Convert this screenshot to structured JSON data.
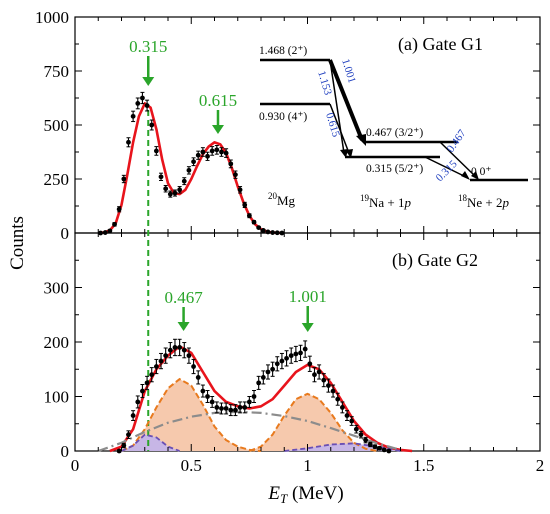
{
  "chart_data": [
    {
      "type": "scatter",
      "panel_label": "(a) Gate G1",
      "xlabel": "E_T (MeV)",
      "ylabel": "Counts",
      "xlim": [
        0,
        2
      ],
      "ylim": [
        0,
        1000
      ],
      "yticks": [
        "0",
        "250",
        "500",
        "750",
        "1000"
      ],
      "peak_labels": [
        {
          "text": "0.315",
          "x": 0.315
        },
        {
          "text": "0.615",
          "x": 0.615
        }
      ],
      "series": [
        {
          "kind": "data_points",
          "x": [
            0.11,
            0.13,
            0.15,
            0.17,
            0.19,
            0.21,
            0.23,
            0.25,
            0.27,
            0.29,
            0.31,
            0.33,
            0.35,
            0.37,
            0.39,
            0.41,
            0.43,
            0.45,
            0.47,
            0.49,
            0.51,
            0.53,
            0.55,
            0.57,
            0.59,
            0.61,
            0.63,
            0.65,
            0.67,
            0.69,
            0.71,
            0.73,
            0.75,
            0.77,
            0.79,
            0.81,
            0.83,
            0.85,
            0.87,
            0.89
          ],
          "y": [
            0,
            2,
            10,
            40,
            110,
            250,
            420,
            540,
            600,
            625,
            590,
            500,
            380,
            260,
            205,
            180,
            185,
            200,
            240,
            290,
            330,
            360,
            375,
            355,
            380,
            385,
            375,
            370,
            320,
            270,
            200,
            130,
            80,
            50,
            25,
            12,
            5,
            2,
            1,
            0
          ],
          "yerr": [
            1,
            2,
            4,
            8,
            12,
            17,
            21,
            24,
            25,
            26,
            25,
            23,
            20,
            17,
            15,
            14,
            14,
            15,
            16,
            17,
            18,
            19,
            20,
            19,
            20,
            20,
            20,
            20,
            18,
            17,
            15,
            12,
            9,
            7,
            5,
            4,
            3,
            2,
            1,
            1
          ]
        },
        {
          "kind": "fit",
          "x": [
            0.1,
            0.125,
            0.15,
            0.175,
            0.2,
            0.225,
            0.25,
            0.275,
            0.3,
            0.325,
            0.35,
            0.375,
            0.4,
            0.425,
            0.45,
            0.475,
            0.5,
            0.525,
            0.55,
            0.575,
            0.6,
            0.625,
            0.65,
            0.675,
            0.7,
            0.725,
            0.75,
            0.775,
            0.8,
            0.825,
            0.85,
            0.875,
            0.9
          ],
          "y": [
            0,
            3,
            12,
            45,
            130,
            270,
            420,
            540,
            600,
            580,
            480,
            340,
            230,
            185,
            180,
            200,
            250,
            310,
            365,
            400,
            420,
            410,
            370,
            300,
            215,
            140,
            80,
            40,
            18,
            7,
            2,
            1,
            0
          ]
        }
      ]
    },
    {
      "type": "line",
      "panel_label": "(b) Gate G2",
      "xlabel": "E_T (MeV)",
      "ylabel": "Counts",
      "xlim": [
        0,
        2
      ],
      "ylim": [
        0,
        400
      ],
      "xticks": [
        "0",
        "0.5",
        "1",
        "1.5",
        "2"
      ],
      "yticks": [
        "0",
        "100",
        "200",
        "300"
      ],
      "peak_labels": [
        {
          "text": "0.467",
          "x": 0.467
        },
        {
          "text": "1.001",
          "x": 1.001
        }
      ],
      "series": [
        {
          "kind": "data_points",
          "x": [
            0.19,
            0.21,
            0.23,
            0.25,
            0.27,
            0.29,
            0.31,
            0.33,
            0.35,
            0.37,
            0.39,
            0.41,
            0.43,
            0.45,
            0.47,
            0.49,
            0.51,
            0.53,
            0.55,
            0.57,
            0.59,
            0.61,
            0.63,
            0.65,
            0.67,
            0.69,
            0.71,
            0.73,
            0.75,
            0.77,
            0.79,
            0.81,
            0.83,
            0.85,
            0.87,
            0.89,
            0.91,
            0.93,
            0.95,
            0.97,
            0.99,
            1.01,
            1.03,
            1.05,
            1.07,
            1.09,
            1.11,
            1.13,
            1.15,
            1.17,
            1.19,
            1.21,
            1.23,
            1.25,
            1.27,
            1.29,
            1.31,
            1.33,
            1.35
          ],
          "y": [
            0,
            10,
            30,
            65,
            90,
            110,
            125,
            140,
            155,
            165,
            175,
            185,
            190,
            190,
            185,
            175,
            155,
            135,
            110,
            100,
            90,
            80,
            78,
            78,
            75,
            75,
            80,
            80,
            90,
            100,
            125,
            135,
            145,
            150,
            160,
            165,
            170,
            175,
            178,
            180,
            187,
            160,
            140,
            145,
            130,
            120,
            110,
            95,
            80,
            65,
            55,
            40,
            30,
            20,
            12,
            8,
            5,
            2,
            0
          ],
          "yerr": [
            2,
            4,
            7,
            9,
            11,
            12,
            12,
            13,
            13,
            14,
            14,
            14,
            15,
            15,
            14,
            14,
            13,
            12,
            11,
            11,
            10,
            10,
            10,
            10,
            10,
            10,
            10,
            10,
            10,
            11,
            12,
            12,
            13,
            13,
            13,
            14,
            14,
            14,
            14,
            14,
            15,
            14,
            13,
            13,
            12,
            12,
            11,
            11,
            10,
            9,
            8,
            7,
            6,
            5,
            4,
            3,
            3,
            2,
            1
          ]
        },
        {
          "kind": "fit_total",
          "x": [
            0.15,
            0.2,
            0.25,
            0.3,
            0.35,
            0.4,
            0.45,
            0.5,
            0.55,
            0.6,
            0.65,
            0.7,
            0.75,
            0.8,
            0.85,
            0.9,
            0.95,
            1.0,
            1.05,
            1.1,
            1.15,
            1.2,
            1.25,
            1.3,
            1.35,
            1.4,
            1.45
          ],
          "y": [
            0,
            8,
            40,
            110,
            150,
            175,
            192,
            180,
            145,
            110,
            90,
            82,
            78,
            82,
            95,
            120,
            145,
            158,
            150,
            125,
            90,
            55,
            30,
            15,
            6,
            2,
            0
          ]
        },
        {
          "kind": "component_0.467",
          "x": [
            0.2,
            0.25,
            0.3,
            0.35,
            0.4,
            0.45,
            0.5,
            0.55,
            0.6,
            0.65,
            0.7,
            0.75,
            0.8
          ],
          "y": [
            0,
            10,
            40,
            80,
            115,
            132,
            120,
            85,
            45,
            20,
            8,
            2,
            0
          ]
        },
        {
          "kind": "component_1.001",
          "x": [
            0.75,
            0.8,
            0.85,
            0.9,
            0.95,
            1.0,
            1.05,
            1.1,
            1.15,
            1.2,
            1.25,
            1.3
          ],
          "y": [
            0,
            8,
            30,
            65,
            95,
            105,
            95,
            70,
            38,
            15,
            4,
            0
          ]
        },
        {
          "kind": "component_0.315",
          "x": [
            0.2,
            0.25,
            0.3,
            0.35,
            0.4,
            0.45
          ],
          "y": [
            0,
            10,
            30,
            25,
            8,
            0
          ]
        },
        {
          "kind": "component_high",
          "x": [
            0.9,
            1.0,
            1.1,
            1.2,
            1.3,
            1.4
          ],
          "y": [
            0,
            5,
            12,
            14,
            8,
            0
          ]
        },
        {
          "kind": "background",
          "x": [
            0.1,
            0.2,
            0.3,
            0.4,
            0.5,
            0.6,
            0.7,
            0.8,
            0.9,
            1.0,
            1.1,
            1.2,
            1.3,
            1.4
          ],
          "y": [
            0,
            15,
            35,
            52,
            63,
            70,
            72,
            70,
            64,
            55,
            42,
            28,
            14,
            2
          ]
        }
      ]
    }
  ],
  "level_scheme": {
    "nuclei": [
      {
        "label_mass": "20",
        "label_symbol": "Mg"
      },
      {
        "label_mass": "19",
        "label_symbol": "Na + 1",
        "label_suffix": "p"
      },
      {
        "label_mass": "18",
        "label_symbol": "Ne + 2",
        "label_suffix": "p"
      }
    ],
    "levels": [
      {
        "text": "1.468 (2⁺)"
      },
      {
        "text": "0.930 (4⁺)"
      },
      {
        "text": "0.467 (3/2⁺)"
      },
      {
        "text": "0.315 (5/2⁺)"
      },
      {
        "text": "0 0⁺"
      }
    ],
    "gammas": [
      "1.001",
      "1.153",
      "0.615",
      "0.467",
      "0.315"
    ]
  },
  "colors": {
    "fit": "#e8141c",
    "peak_marker": "#2aa52a",
    "dashed_marker": "#2aa52a",
    "component_fill": "#f6c9ad",
    "component_line": "#e87a1e",
    "background_line": "#8c8c8c",
    "purple": "#6a4fb4",
    "gamma_text": "#1f3fbf"
  }
}
